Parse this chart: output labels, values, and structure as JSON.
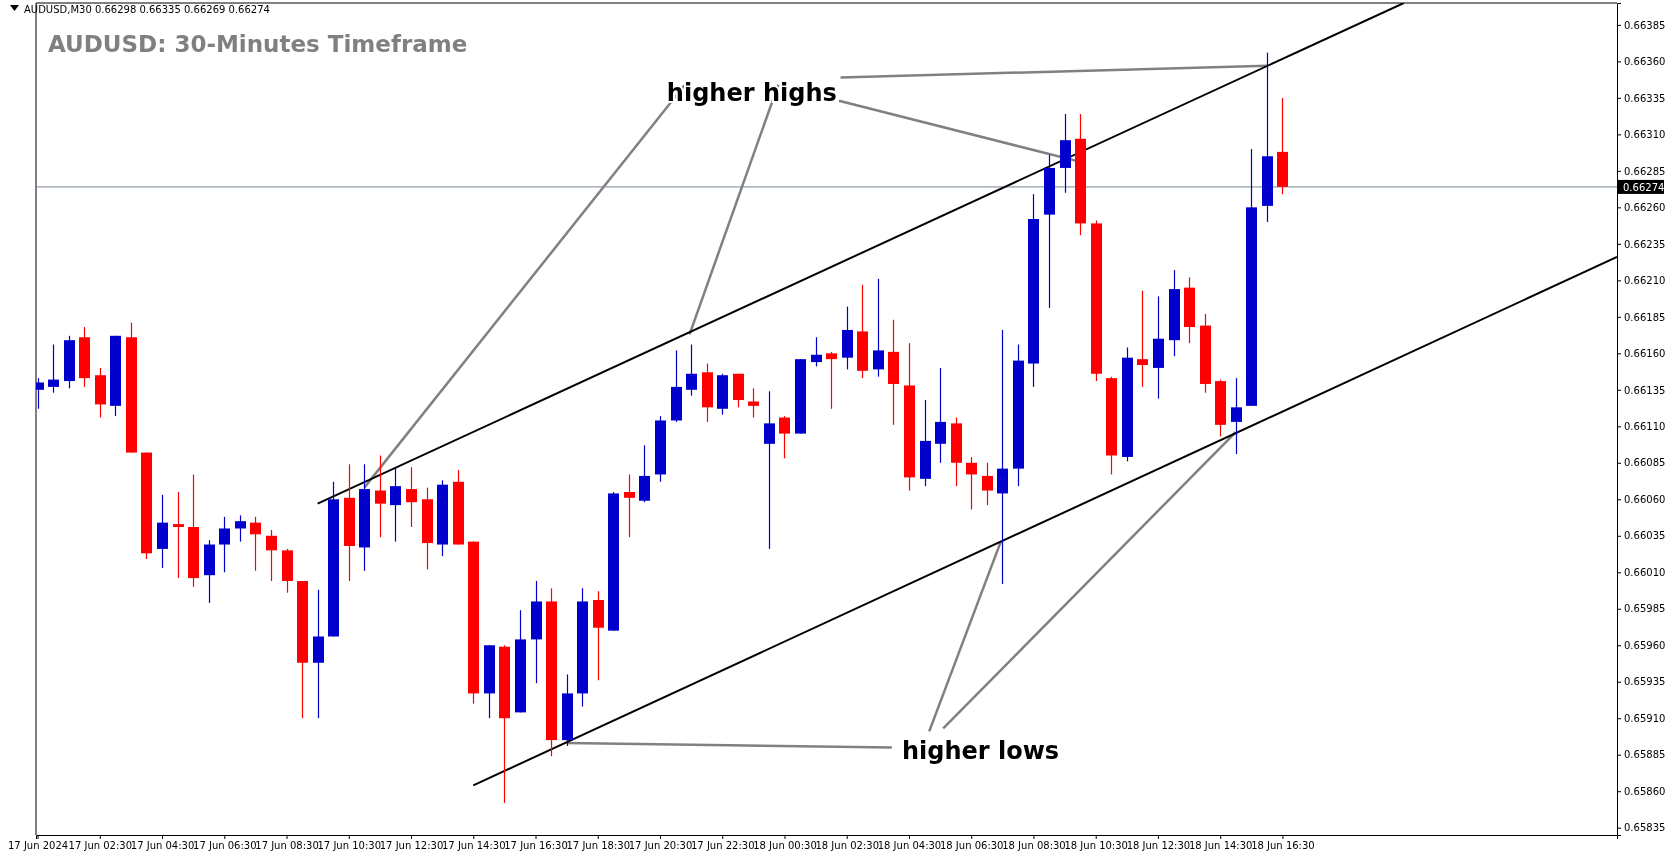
{
  "chart_data": {
    "type": "candlestick",
    "title": "AUDUSD: 30-Minutes Timeframe",
    "annotations": [
      "AUDUSD,M30  0.66298 0.66335 0.66269 0.66274",
      {
        "text": "higher highs",
        "x": "2024-06-18T16:00",
        "y": 0.66357
      },
      {
        "text": "higher lows",
        "x": "2024-06-18T15:00",
        "y": 0.66106
      }
    ],
    "x": [
      "2024-06-17T00:30",
      "2024-06-17T01:00",
      "2024-06-17T01:30",
      "2024-06-17T02:00",
      "2024-06-17T02:30",
      "2024-06-17T03:00",
      "2024-06-17T03:30",
      "2024-06-17T04:00",
      "2024-06-17T04:30",
      "2024-06-17T05:00",
      "2024-06-17T05:30",
      "2024-06-17T06:00",
      "2024-06-17T06:30",
      "2024-06-17T07:00",
      "2024-06-17T07:30",
      "2024-06-17T08:00",
      "2024-06-17T08:30",
      "2024-06-17T09:00",
      "2024-06-17T09:30",
      "2024-06-17T10:00",
      "2024-06-17T10:30",
      "2024-06-17T11:00",
      "2024-06-17T11:30",
      "2024-06-17T12:00",
      "2024-06-17T12:30",
      "2024-06-17T13:00",
      "2024-06-17T13:30",
      "2024-06-17T14:00",
      "2024-06-17T14:30",
      "2024-06-17T15:00",
      "2024-06-17T15:30",
      "2024-06-17T16:00",
      "2024-06-17T16:30",
      "2024-06-17T17:00",
      "2024-06-17T17:30",
      "2024-06-17T18:00",
      "2024-06-17T18:30",
      "2024-06-17T19:00",
      "2024-06-17T19:30",
      "2024-06-17T20:00",
      "2024-06-17T20:30",
      "2024-06-17T21:00",
      "2024-06-17T21:30",
      "2024-06-17T22:00",
      "2024-06-17T22:30",
      "2024-06-17T23:00",
      "2024-06-17T23:30",
      "2024-06-18T00:00",
      "2024-06-18T00:30",
      "2024-06-18T01:00",
      "2024-06-18T01:30",
      "2024-06-18T02:00",
      "2024-06-18T02:30",
      "2024-06-18T03:00",
      "2024-06-18T03:30",
      "2024-06-18T04:00",
      "2024-06-18T04:30",
      "2024-06-18T05:00",
      "2024-06-18T05:30",
      "2024-06-18T06:00",
      "2024-06-18T06:30",
      "2024-06-18T07:00",
      "2024-06-18T07:30",
      "2024-06-18T08:00",
      "2024-06-18T08:30",
      "2024-06-18T09:00",
      "2024-06-18T09:30",
      "2024-06-18T10:00",
      "2024-06-18T10:30",
      "2024-06-18T11:00",
      "2024-06-18T11:30",
      "2024-06-18T12:00",
      "2024-06-18T12:30",
      "2024-06-18T13:00",
      "2024-06-18T13:30",
      "2024-06-18T14:00",
      "2024-06-18T14:30",
      "2024-06-18T15:00",
      "2024-06-18T15:30",
      "2024-06-18T16:00",
      "2024-06-18T16:30"
    ],
    "ohlc": [
      [
        0.66135,
        0.66143,
        0.66122,
        0.6614
      ],
      [
        0.66137,
        0.66166,
        0.66133,
        0.66142
      ],
      [
        0.66141,
        0.66172,
        0.66136,
        0.66169
      ],
      [
        0.66171,
        0.66178,
        0.66137,
        0.66143
      ],
      [
        0.66145,
        0.6615,
        0.66116,
        0.66125
      ],
      [
        0.66124,
        0.66172,
        0.66117,
        0.66172
      ],
      [
        0.66171,
        0.66181,
        0.66092,
        0.66092
      ],
      [
        0.66092,
        0.66092,
        0.66019,
        0.66023
      ],
      [
        0.66026,
        0.66063,
        0.66013,
        0.66044
      ],
      [
        0.66043,
        0.66065,
        0.66006,
        0.66041
      ],
      [
        0.66041,
        0.66077,
        0.66,
        0.66006
      ],
      [
        0.66008,
        0.66032,
        0.65989,
        0.66029
      ],
      [
        0.66029,
        0.66048,
        0.6601,
        0.6604
      ],
      [
        0.6604,
        0.66049,
        0.66031,
        0.66045
      ],
      [
        0.66044,
        0.66048,
        0.66011,
        0.66036
      ],
      [
        0.66035,
        0.66039,
        0.66004,
        0.66025
      ],
      [
        0.66025,
        0.66026,
        0.65996,
        0.66004
      ],
      [
        0.66004,
        0.66004,
        0.6591,
        0.65948
      ],
      [
        0.65948,
        0.65998,
        0.6591,
        0.65966
      ],
      [
        0.65966,
        0.66072,
        0.65966,
        0.6606
      ],
      [
        0.66061,
        0.66084,
        0.66004,
        0.66028
      ],
      [
        0.66027,
        0.66084,
        0.66011,
        0.66067
      ],
      [
        0.66066,
        0.6609,
        0.66034,
        0.66057
      ],
      [
        0.66056,
        0.66082,
        0.66031,
        0.66069
      ],
      [
        0.66067,
        0.66082,
        0.66041,
        0.66058
      ],
      [
        0.6606,
        0.66068,
        0.66012,
        0.6603
      ],
      [
        0.66029,
        0.66073,
        0.66021,
        0.6607
      ],
      [
        0.66072,
        0.6608,
        0.66029,
        0.66029
      ],
      [
        0.66031,
        0.66031,
        0.6592,
        0.65927
      ],
      [
        0.65927,
        0.6596,
        0.6591,
        0.6596
      ],
      [
        0.65959,
        0.6596,
        0.65852,
        0.6591
      ],
      [
        0.65914,
        0.65984,
        0.65914,
        0.65964
      ],
      [
        0.65964,
        0.66004,
        0.65934,
        0.6599
      ],
      [
        0.6599,
        0.65999,
        0.65884,
        0.65895
      ],
      [
        0.65895,
        0.6594,
        0.65891,
        0.65927
      ],
      [
        0.65927,
        0.65999,
        0.65918,
        0.6599
      ],
      [
        0.65991,
        0.65997,
        0.65936,
        0.65972
      ],
      [
        0.6597,
        0.66065,
        0.6597,
        0.66064
      ],
      [
        0.66065,
        0.66077,
        0.66034,
        0.66061
      ],
      [
        0.66059,
        0.66097,
        0.66058,
        0.66076
      ],
      [
        0.66077,
        0.66117,
        0.66072,
        0.66114
      ],
      [
        0.66114,
        0.66162,
        0.66113,
        0.66137
      ],
      [
        0.66135,
        0.66166,
        0.66131,
        0.66146
      ],
      [
        0.66147,
        0.66153,
        0.66113,
        0.66123
      ],
      [
        0.66122,
        0.66146,
        0.66118,
        0.66145
      ],
      [
        0.66146,
        0.66146,
        0.66123,
        0.66128
      ],
      [
        0.66127,
        0.66136,
        0.66116,
        0.66124
      ],
      [
        0.66098,
        0.66134,
        0.66026,
        0.66112
      ],
      [
        0.66116,
        0.66117,
        0.66088,
        0.66105
      ],
      [
        0.66105,
        0.66156,
        0.66105,
        0.66156
      ],
      [
        0.66154,
        0.66171,
        0.66151,
        0.66159
      ],
      [
        0.6616,
        0.66161,
        0.66122,
        0.66156
      ],
      [
        0.66157,
        0.66192,
        0.66149,
        0.66176
      ],
      [
        0.66175,
        0.66207,
        0.66143,
        0.66148
      ],
      [
        0.66149,
        0.66211,
        0.66144,
        0.66162
      ],
      [
        0.66161,
        0.66183,
        0.66111,
        0.66139
      ],
      [
        0.66138,
        0.66167,
        0.66066,
        0.66075
      ],
      [
        0.66074,
        0.66128,
        0.66069,
        0.661
      ],
      [
        0.66098,
        0.6615,
        0.66085,
        0.66113
      ],
      [
        0.66112,
        0.66116,
        0.66069,
        0.66085
      ],
      [
        0.66085,
        0.66089,
        0.66053,
        0.66077
      ],
      [
        0.66076,
        0.66085,
        0.66056,
        0.66066
      ],
      [
        0.66064,
        0.66176,
        0.66002,
        0.66081
      ],
      [
        0.66081,
        0.66166,
        0.66069,
        0.66155
      ],
      [
        0.66153,
        0.66269,
        0.66137,
        0.66252
      ],
      [
        0.66255,
        0.66296,
        0.66191,
        0.66287
      ],
      [
        0.66287,
        0.66324,
        0.6627,
        0.66306
      ],
      [
        0.66307,
        0.66324,
        0.66241,
        0.66249
      ],
      [
        0.66249,
        0.66251,
        0.66141,
        0.66146
      ],
      [
        0.66143,
        0.66144,
        0.66077,
        0.6609
      ],
      [
        0.66089,
        0.66164,
        0.66086,
        0.66157
      ],
      [
        0.66156,
        0.66203,
        0.66137,
        0.66152
      ],
      [
        0.6615,
        0.66199,
        0.66129,
        0.6617
      ],
      [
        0.66169,
        0.66217,
        0.66158,
        0.66204
      ],
      [
        0.66205,
        0.66212,
        0.66167,
        0.66178
      ],
      [
        0.66179,
        0.66187,
        0.66133,
        0.66139
      ],
      [
        0.66141,
        0.66142,
        0.66103,
        0.66111
      ],
      [
        0.66113,
        0.66143,
        0.66091,
        0.66123
      ],
      [
        0.66124,
        0.663,
        0.66124,
        0.6626
      ],
      [
        0.66261,
        0.66366,
        0.6625,
        0.66295
      ],
      [
        0.66298,
        0.66335,
        0.66269,
        0.66274
      ]
    ],
    "colors": [
      "#0000cc",
      "#0000cc",
      "#0000cc",
      "#ff0000",
      "#ff0000",
      "#0000cc",
      "#ff0000",
      "#ff0000",
      "#0000cc",
      "#ff0000",
      "#ff0000",
      "#0000cc",
      "#0000cc",
      "#0000cc",
      "#ff0000",
      "#ff0000",
      "#ff0000",
      "#ff0000",
      "#0000cc",
      "#0000cc",
      "#ff0000",
      "#0000cc",
      "#ff0000",
      "#0000cc",
      "#ff0000",
      "#ff0000",
      "#0000cc",
      "#ff0000",
      "#ff0000",
      "#0000cc",
      "#ff0000",
      "#0000cc",
      "#0000cc",
      "#ff0000",
      "#0000cc",
      "#0000cc",
      "#ff0000",
      "#0000cc",
      "#ff0000",
      "#0000cc",
      "#0000cc",
      "#0000cc",
      "#0000cc",
      "#ff0000",
      "#0000cc",
      "#ff0000",
      "#ff0000",
      "#0000cc",
      "#ff0000",
      "#0000cc",
      "#0000cc",
      "#ff0000",
      "#0000cc",
      "#ff0000",
      "#0000cc",
      "#ff0000",
      "#ff0000",
      "#0000cc",
      "#0000cc",
      "#ff0000",
      "#ff0000",
      "#ff0000",
      "#0000cc",
      "#0000cc",
      "#0000cc",
      "#0000cc",
      "#0000cc",
      "#ff0000",
      "#ff0000",
      "#ff0000",
      "#0000cc",
      "#ff0000",
      "#0000cc",
      "#0000cc",
      "#ff0000",
      "#ff0000",
      "#ff0000",
      "#0000cc",
      "#0000cc",
      "#0000cc",
      "#ff0000"
    ],
    "series": [
      {
        "type": "line",
        "color": "#000000",
        "x": [
          "2024-06-17T09:30",
          "2024-06-18T20:24"
        ],
        "values": [
          0.66057,
          0.664
        ]
      },
      {
        "type": "line",
        "color": "#000000",
        "x": [
          "2024-06-17T14:30",
          "2024-06-19T03:15"
        ],
        "values": [
          0.65864,
          0.66226
        ]
      }
    ],
    "ref_lines": [
      {
        "axis": "y",
        "value": 0.66274,
        "label": "0.66274",
        "color": "#778899"
      }
    ],
    "xlim": [
      "2024-06-17T00:27",
      "2024-06-19T03:15"
    ],
    "xticks": [
      {
        "value": "2024-06-17T00:30",
        "label": "17 Jun 2024"
      },
      {
        "value": "2024-06-17T02:30",
        "label": "17 Jun 02:30"
      },
      {
        "value": "2024-06-17T04:30",
        "label": "17 Jun 04:30"
      },
      {
        "value": "2024-06-17T06:30",
        "label": "17 Jun 06:30"
      },
      {
        "value": "2024-06-17T08:30",
        "label": "17 Jun 08:30"
      },
      {
        "value": "2024-06-17T10:30",
        "label": "17 Jun 10:30"
      },
      {
        "value": "2024-06-17T12:30",
        "label": "17 Jun 12:30"
      },
      {
        "value": "2024-06-17T14:30",
        "label": "17 Jun 14:30"
      },
      {
        "value": "2024-06-17T16:30",
        "label": "17 Jun 16:30"
      },
      {
        "value": "2024-06-17T18:30",
        "label": "17 Jun 18:30"
      },
      {
        "value": "2024-06-17T20:30",
        "label": "17 Jun 20:30"
      },
      {
        "value": "2024-06-17T22:30",
        "label": "17 Jun 22:30"
      },
      {
        "value": "2024-06-18T00:30",
        "label": "18 Jun 00:30"
      },
      {
        "value": "2024-06-18T02:30",
        "label": "18 Jun 02:30"
      },
      {
        "value": "2024-06-18T04:30",
        "label": "18 Jun 04:30"
      },
      {
        "value": "2024-06-18T06:30",
        "label": "18 Jun 06:30"
      },
      {
        "value": "2024-06-18T08:30",
        "label": "18 Jun 08:30"
      },
      {
        "value": "2024-06-18T10:30",
        "label": "18 Jun 10:30"
      },
      {
        "value": "2024-06-18T12:30",
        "label": "18 Jun 12:30"
      },
      {
        "value": "2024-06-18T14:30",
        "label": "18 Jun 14:30"
      },
      {
        "value": "2024-06-18T16:30",
        "label": "18 Jun 16:30"
      }
    ],
    "ylim": [
      0.6583,
      0.664
    ],
    "yticks": [
      {
        "value": 0.65835,
        "label": "0.65835"
      },
      {
        "value": 0.6586,
        "label": "0.65860"
      },
      {
        "value": 0.65885,
        "label": "0.65885"
      },
      {
        "value": 0.6591,
        "label": "0.65910"
      },
      {
        "value": 0.65935,
        "label": "0.65935"
      },
      {
        "value": 0.6596,
        "label": "0.65960"
      },
      {
        "value": 0.65985,
        "label": "0.65985"
      },
      {
        "value": 0.6601,
        "label": "0.66010"
      },
      {
        "value": 0.66035,
        "label": "0.66035"
      },
      {
        "value": 0.6606,
        "label": "0.66060"
      },
      {
        "value": 0.66085,
        "label": "0.66085"
      },
      {
        "value": 0.6611,
        "label": "0.66110"
      },
      {
        "value": 0.66135,
        "label": "0.66135"
      },
      {
        "value": 0.6616,
        "label": "0.66160"
      },
      {
        "value": 0.66185,
        "label": "0.66185"
      },
      {
        "value": 0.6621,
        "label": "0.66210"
      },
      {
        "value": 0.66235,
        "label": "0.66235"
      },
      {
        "value": 0.6626,
        "label": "0.66260"
      },
      {
        "value": 0.66285,
        "label": "0.66285"
      },
      {
        "value": 0.6631,
        "label": "0.66310"
      },
      {
        "value": 0.66335,
        "label": "0.66335"
      },
      {
        "value": 0.6636,
        "label": "0.66360"
      },
      {
        "value": 0.66385,
        "label": "0.66385"
      }
    ],
    "grid": false
  }
}
